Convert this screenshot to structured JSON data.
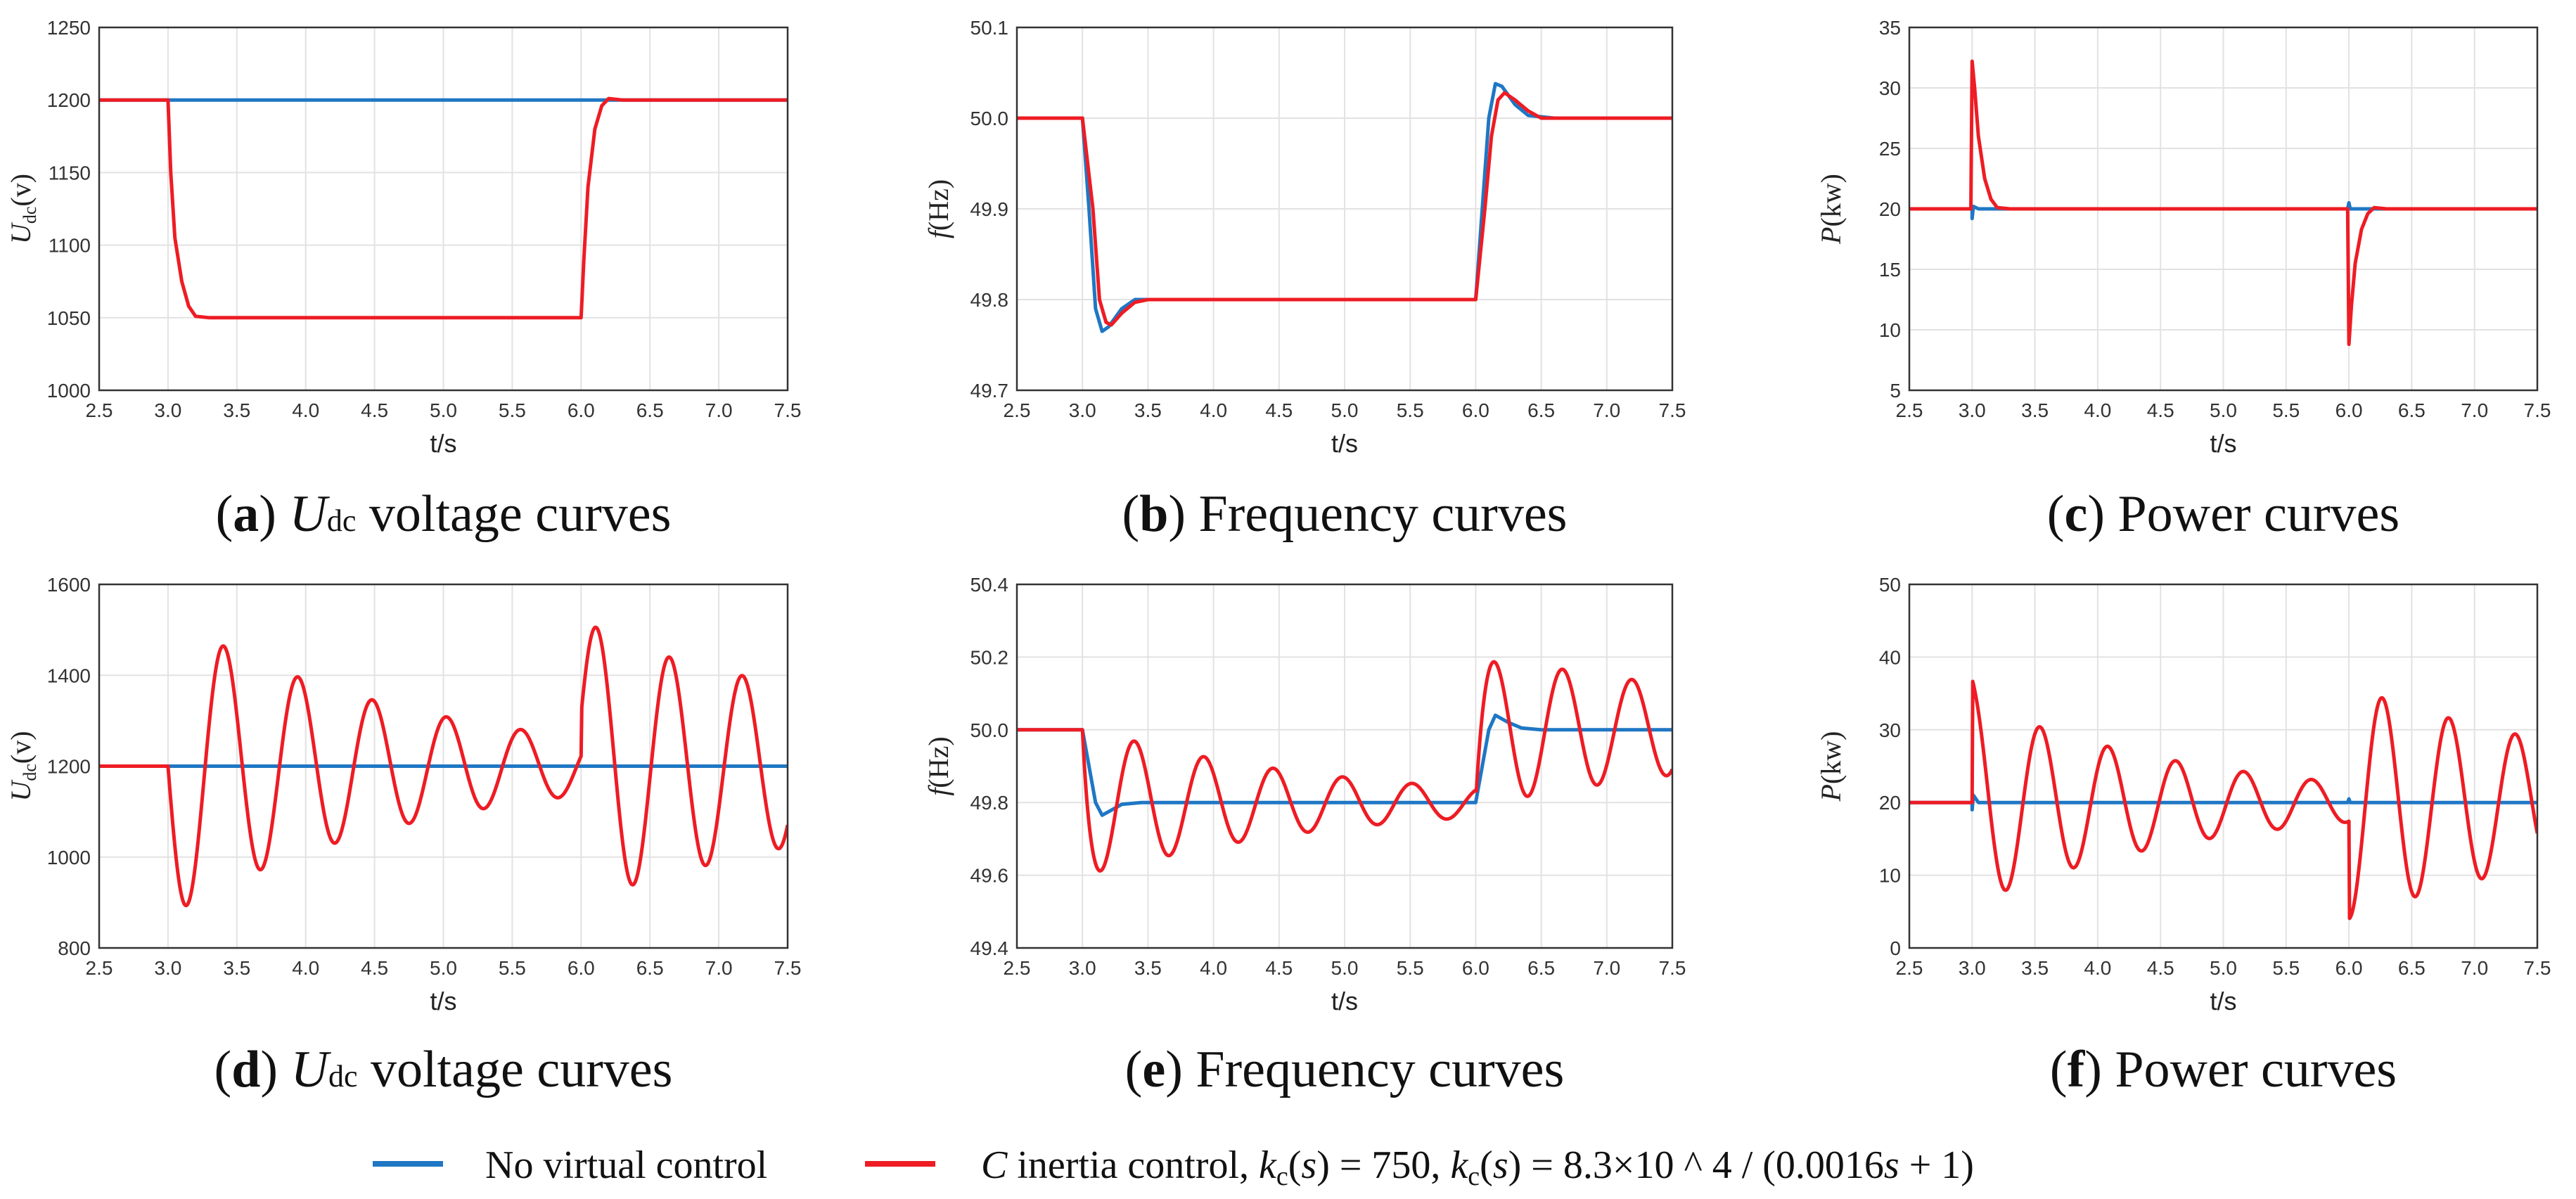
{
  "colors": {
    "no_virtual": "#1f77c4",
    "c_inertia": "#ee1c24",
    "grid": "#e2e2e2",
    "frame": "#333333"
  },
  "legend": {
    "items": [
      {
        "label": "No virtual control",
        "color": "#1f77c4"
      },
      {
        "label": "C inertia control, kc(s) = 750, kc(s) = 8.3×10 ^ 4 / (0.0016s + 1)",
        "color": "#ee1c24"
      }
    ]
  },
  "chart_data": [
    {
      "id": "a",
      "type": "line",
      "caption": {
        "letter": "a",
        "var": "U",
        "sub": "dc",
        "text": " voltage curves"
      },
      "ylabel": {
        "var": "U",
        "sub": "dc",
        "unit": "(v)"
      },
      "xlabel": "t/s",
      "xlim": [
        2.5,
        7.5
      ],
      "ylim": [
        1000,
        1250
      ],
      "xticks": [
        "2.5",
        "3.0",
        "3.5",
        "4.0",
        "4.5",
        "5.0",
        "5.5",
        "6.0",
        "6.5",
        "7.0",
        "7.5"
      ],
      "yticks": [
        "1000",
        "1050",
        "1100",
        "1150",
        "1200",
        "1250"
      ],
      "series": [
        {
          "name": "No virtual control",
          "color": "#1f77c4",
          "x": [
            2.5,
            3.0,
            3.5,
            4.0,
            5.0,
            6.0,
            6.5,
            7.0,
            7.5
          ],
          "y": [
            1200,
            1200,
            1200,
            1200,
            1200,
            1200,
            1200,
            1200,
            1200
          ]
        },
        {
          "name": "C inertia control",
          "color": "#ee1c24",
          "x": [
            2.5,
            3.0,
            3.02,
            3.05,
            3.1,
            3.15,
            3.2,
            3.3,
            3.5,
            4.0,
            5.0,
            6.0,
            6.02,
            6.05,
            6.1,
            6.15,
            6.2,
            6.3,
            6.5,
            7.0,
            7.5
          ],
          "y": [
            1200,
            1200,
            1150,
            1105,
            1075,
            1058,
            1051,
            1050,
            1050,
            1050,
            1050,
            1050,
            1090,
            1140,
            1180,
            1196,
            1201,
            1200,
            1200,
            1200,
            1200
          ]
        }
      ]
    },
    {
      "id": "b",
      "type": "line",
      "caption": {
        "letter": "b",
        "var": "",
        "sub": "",
        "text": " Frequency curves"
      },
      "ylabel": {
        "var": "f",
        "sub": "",
        "unit": "(Hz)"
      },
      "xlabel": "t/s",
      "xlim": [
        2.5,
        7.5
      ],
      "ylim": [
        49.7,
        50.1
      ],
      "xticks": [
        "2.5",
        "3.0",
        "3.5",
        "4.0",
        "4.5",
        "5.0",
        "5.5",
        "6.0",
        "6.5",
        "7.0",
        "7.5"
      ],
      "yticks": [
        "49.7",
        "49.8",
        "49.9",
        "50.0",
        "50.1"
      ],
      "series": [
        {
          "name": "No virtual control",
          "color": "#1f77c4",
          "x": [
            2.5,
            3.0,
            3.05,
            3.1,
            3.15,
            3.2,
            3.3,
            3.4,
            3.6,
            6.0,
            6.05,
            6.1,
            6.15,
            6.2,
            6.3,
            6.4,
            6.6,
            7.5
          ],
          "y": [
            50.0,
            50.0,
            49.9,
            49.79,
            49.765,
            49.77,
            49.79,
            49.8,
            49.8,
            49.8,
            49.9,
            50.0,
            50.038,
            50.035,
            50.015,
            50.003,
            50.0,
            50.0
          ]
        },
        {
          "name": "C inertia control",
          "color": "#ee1c24",
          "x": [
            2.5,
            3.0,
            3.08,
            3.13,
            3.18,
            3.22,
            3.3,
            3.4,
            3.5,
            3.7,
            6.0,
            6.07,
            6.12,
            6.17,
            6.22,
            6.3,
            6.4,
            6.5,
            6.7,
            7.5
          ],
          "y": [
            50.0,
            50.0,
            49.9,
            49.8,
            49.775,
            49.772,
            49.785,
            49.797,
            49.8,
            49.8,
            49.8,
            49.9,
            49.98,
            50.02,
            50.028,
            50.02,
            50.008,
            50.0,
            50.0,
            50.0
          ]
        }
      ]
    },
    {
      "id": "c",
      "type": "line",
      "caption": {
        "letter": "c",
        "var": "",
        "sub": "",
        "text": " Power curves"
      },
      "ylabel": {
        "var": "P",
        "sub": "",
        "unit": "(kw)"
      },
      "xlabel": "t/s",
      "xlim": [
        2.5,
        7.5
      ],
      "ylim": [
        5,
        35
      ],
      "xticks": [
        "2.5",
        "3.0",
        "3.5",
        "4.0",
        "4.5",
        "5.0",
        "5.5",
        "6.0",
        "6.5",
        "7.0",
        "7.5"
      ],
      "yticks": [
        "5",
        "10",
        "15",
        "20",
        "25",
        "30",
        "35"
      ],
      "series": [
        {
          "name": "No virtual control",
          "color": "#1f77c4",
          "x": [
            2.5,
            3.0,
            3.0,
            3.01,
            3.05,
            3.2,
            5.99,
            6.0,
            6.01,
            6.05,
            7.5
          ],
          "y": [
            20,
            20,
            19.2,
            20.2,
            20,
            20,
            20,
            20.5,
            20,
            20,
            20
          ]
        },
        {
          "name": "C inertia control",
          "color": "#ee1c24",
          "x": [
            2.5,
            2.99,
            3.0,
            3.02,
            3.05,
            3.1,
            3.15,
            3.2,
            3.3,
            3.4,
            5.99,
            6.0,
            6.02,
            6.05,
            6.1,
            6.15,
            6.2,
            6.3,
            7.5
          ],
          "y": [
            20,
            20,
            32.2,
            30,
            26,
            22.5,
            20.8,
            20.1,
            20,
            20,
            20,
            8.8,
            12,
            15.5,
            18.3,
            19.6,
            20.1,
            20,
            20
          ]
        }
      ]
    },
    {
      "id": "d",
      "type": "line",
      "caption": {
        "letter": "d",
        "var": "U",
        "sub": "dc",
        "text": " voltage curves"
      },
      "ylabel": {
        "var": "U",
        "sub": "dc",
        "unit": "(v)"
      },
      "xlabel": "t/s",
      "xlim": [
        2.5,
        7.5
      ],
      "ylim": [
        800,
        1600
      ],
      "xticks": [
        "2.5",
        "3.0",
        "3.5",
        "4.0",
        "4.5",
        "5.0",
        "5.5",
        "6.0",
        "6.5",
        "7.0",
        "7.5"
      ],
      "yticks": [
        "800",
        "1000",
        "1200",
        "1400",
        "1600"
      ],
      "series": [
        {
          "name": "No virtual control",
          "color": "#1f77c4",
          "x": [
            2.5,
            3.0,
            4.0,
            5.0,
            6.0,
            7.0,
            7.5
          ],
          "y": [
            1200,
            1200,
            1200,
            1200,
            1200,
            1200,
            1200
          ]
        },
        {
          "name": "C inertia control",
          "color": "#ee1c24",
          "osc": {
            "t0": 3.0,
            "base": 1200,
            "t1": 6.0,
            "jump": 80
          },
          "x": [],
          "y": []
        }
      ]
    },
    {
      "id": "e",
      "type": "line",
      "caption": {
        "letter": "e",
        "var": "",
        "sub": "",
        "text": " Frequency curves"
      },
      "ylabel": {
        "var": "f",
        "sub": "",
        "unit": "(Hz)"
      },
      "xlabel": "t/s",
      "xlim": [
        2.5,
        7.5
      ],
      "ylim": [
        49.4,
        50.4
      ],
      "xticks": [
        "2.5",
        "3.0",
        "3.5",
        "4.0",
        "4.5",
        "5.0",
        "5.5",
        "6.0",
        "6.5",
        "7.0",
        "7.5"
      ],
      "yticks": [
        "49.4",
        "49.6",
        "49.8",
        "50.0",
        "50.2",
        "50.4"
      ],
      "series": [
        {
          "name": "No virtual control",
          "color": "#1f77c4",
          "x": [
            2.5,
            3.0,
            3.05,
            3.1,
            3.15,
            3.2,
            3.3,
            3.45,
            6.0,
            6.05,
            6.1,
            6.15,
            6.25,
            6.35,
            6.5,
            7.5
          ],
          "y": [
            50.0,
            50.0,
            49.9,
            49.8,
            49.765,
            49.775,
            49.795,
            49.8,
            49.8,
            49.9,
            50.0,
            50.04,
            50.02,
            50.005,
            50.0,
            50.0
          ]
        },
        {
          "name": "C inertia control",
          "color": "#ee1c24",
          "x": [],
          "y": []
        }
      ]
    },
    {
      "id": "f",
      "type": "line",
      "caption": {
        "letter": "f",
        "var": "",
        "sub": "",
        "text": " Power curves"
      },
      "ylabel": {
        "var": "P",
        "sub": "",
        "unit": "(kw)"
      },
      "xlabel": "t/s",
      "xlim": [
        2.5,
        7.5
      ],
      "ylim": [
        0,
        50
      ],
      "xticks": [
        "2.5",
        "3.0",
        "3.5",
        "4.0",
        "4.5",
        "5.0",
        "5.5",
        "6.0",
        "6.5",
        "7.0",
        "7.5"
      ],
      "yticks": [
        "0",
        "10",
        "20",
        "30",
        "40",
        "50"
      ],
      "series": [
        {
          "name": "No virtual control",
          "color": "#1f77c4",
          "x": [
            2.5,
            3.0,
            3.0,
            3.01,
            3.05,
            5.99,
            6.0,
            6.01,
            6.05,
            7.5
          ],
          "y": [
            20,
            20,
            19,
            21,
            20,
            20,
            20.5,
            20,
            20,
            20
          ]
        },
        {
          "name": "C inertia control",
          "color": "#ee1c24",
          "x": [],
          "y": []
        }
      ]
    }
  ]
}
